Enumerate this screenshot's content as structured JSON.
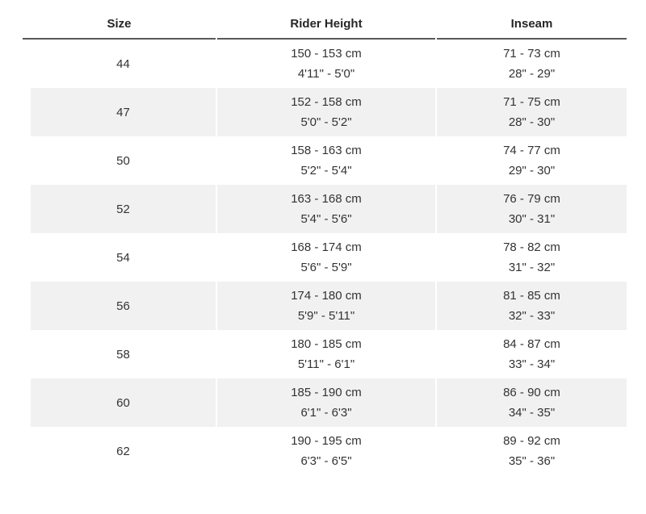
{
  "table": {
    "columns": [
      {
        "id": "size",
        "label": "Size"
      },
      {
        "id": "rider_height",
        "label": "Rider Height"
      },
      {
        "id": "inseam",
        "label": "Inseam"
      }
    ],
    "rows": [
      {
        "size": "44",
        "rider_height_cm": "150 - 153 cm",
        "rider_height_imperial": "4'11\" - 5'0\"",
        "inseam_cm": "71 - 73 cm",
        "inseam_imperial": "28\" - 29\""
      },
      {
        "size": "47",
        "rider_height_cm": "152 - 158 cm",
        "rider_height_imperial": "5'0\" - 5'2\"",
        "inseam_cm": "71 - 75 cm",
        "inseam_imperial": "28\" - 30\""
      },
      {
        "size": "50",
        "rider_height_cm": "158 - 163 cm",
        "rider_height_imperial": "5'2\" - 5'4\"",
        "inseam_cm": "74 - 77 cm",
        "inseam_imperial": "29\" - 30\""
      },
      {
        "size": "52",
        "rider_height_cm": "163 - 168 cm",
        "rider_height_imperial": "5'4\" - 5'6\"",
        "inseam_cm": "76 - 79 cm",
        "inseam_imperial": "30\" - 31\""
      },
      {
        "size": "54",
        "rider_height_cm": "168 - 174 cm",
        "rider_height_imperial": "5'6\" - 5'9\"",
        "inseam_cm": "78 - 82 cm",
        "inseam_imperial": "31\" - 32\""
      },
      {
        "size": "56",
        "rider_height_cm": "174 - 180 cm",
        "rider_height_imperial": "5'9\" - 5'11\"",
        "inseam_cm": "81 - 85 cm",
        "inseam_imperial": "32\" - 33\""
      },
      {
        "size": "58",
        "rider_height_cm": "180 - 185 cm",
        "rider_height_imperial": "5'11\" - 6'1\"",
        "inseam_cm": "84 - 87 cm",
        "inseam_imperial": "33\" - 34\""
      },
      {
        "size": "60",
        "rider_height_cm": "185 - 190 cm",
        "rider_height_imperial": "6'1\" - 6'3\"",
        "inseam_cm": "86 - 90 cm",
        "inseam_imperial": "34\" - 35\""
      },
      {
        "size": "62",
        "rider_height_cm": "190 - 195 cm",
        "rider_height_imperial": "6'3\" - 6'5\"",
        "inseam_cm": "89 - 92 cm",
        "inseam_imperial": "35\" - 36\""
      }
    ]
  },
  "colors": {
    "header_rule": "#59595b",
    "row_stripe": "#f1f1f2",
    "header_text": "#262626",
    "body_text": "#333333",
    "page_bg": "#ffffff"
  }
}
